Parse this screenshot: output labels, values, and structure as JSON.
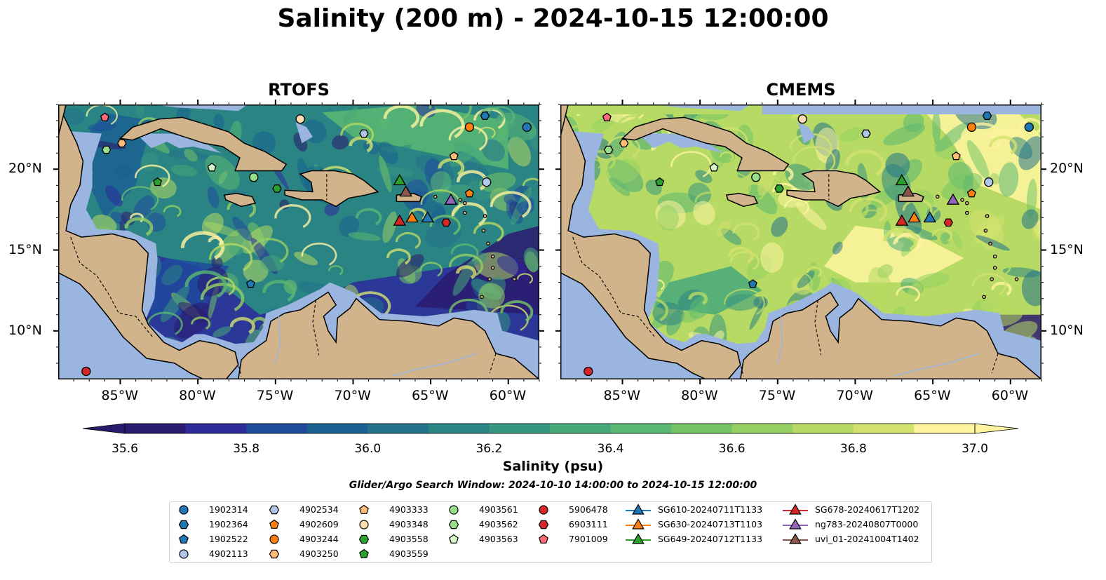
{
  "title": "Salinity (200 m) - 2024-10-15 12:00:00",
  "panels": [
    {
      "title": "RTOFS"
    },
    {
      "title": "CMEMS"
    }
  ],
  "axes": {
    "x_ticks": [
      "85°W",
      "80°W",
      "75°W",
      "70°W",
      "65°W",
      "60°W"
    ],
    "y_ticks": [
      "20°N",
      "15°N",
      "10°N"
    ],
    "lon_range": [
      -89,
      -58
    ],
    "lat_range": [
      7,
      24
    ]
  },
  "colorbar": {
    "label": "Salinity (psu)",
    "ticks": [
      "35.6",
      "35.8",
      "36.0",
      "36.2",
      "36.4",
      "36.6",
      "36.8",
      "37.0"
    ],
    "range": [
      35.6,
      37.0
    ],
    "colors": [
      "#2a1a6e",
      "#2d2a9a",
      "#1f4a9c",
      "#1a6090",
      "#23738a",
      "#2b8484",
      "#37967f",
      "#47a87a",
      "#5bb872",
      "#74c466",
      "#96cf62",
      "#b6da63",
      "#d3e26e",
      "#fff4a0"
    ]
  },
  "search_window": "Glider/Argo Search Window: 2024-10-10 14:00:00 to 2024-10-15 12:00:00",
  "legend": {
    "columns": [
      [
        {
          "label": "1902314",
          "shape": "circle",
          "color": "#1f77b4"
        },
        {
          "label": "1902364",
          "shape": "hexagon",
          "color": "#1f77b4"
        },
        {
          "label": "1902522",
          "shape": "pentagon",
          "color": "#1f77b4"
        },
        {
          "label": "4902113",
          "shape": "circle",
          "color": "#aec7e8"
        }
      ],
      [
        {
          "label": "4902534",
          "shape": "hexagon",
          "color": "#aec7e8"
        },
        {
          "label": "4902609",
          "shape": "pentagon",
          "color": "#ff7f0e"
        },
        {
          "label": "4903244",
          "shape": "circle",
          "color": "#ff7f0e"
        },
        {
          "label": "4903250",
          "shape": "hexagon",
          "color": "#ffbb78"
        }
      ],
      [
        {
          "label": "4903333",
          "shape": "pentagon",
          "color": "#ffbb78"
        },
        {
          "label": "4903348",
          "shape": "circle",
          "color": "#ffddb0"
        },
        {
          "label": "4903558",
          "shape": "hexagon",
          "color": "#2ca02c"
        },
        {
          "label": "4903559",
          "shape": "pentagon",
          "color": "#2ca02c"
        }
      ],
      [
        {
          "label": "4903561",
          "shape": "circle",
          "color": "#98df8a"
        },
        {
          "label": "4903562",
          "shape": "hexagon",
          "color": "#98df8a"
        },
        {
          "label": "4903563",
          "shape": "pentagon",
          "color": "#d6f5c8"
        }
      ],
      [
        {
          "label": "5906478",
          "shape": "circle",
          "color": "#d62728"
        },
        {
          "label": "6903111",
          "shape": "hexagon",
          "color": "#d62728"
        },
        {
          "label": "7901009",
          "shape": "pentagon",
          "color": "#ff6b78"
        }
      ],
      [
        {
          "label": "SG610-20240711T1133",
          "shape": "triangle-line",
          "color": "#1f77b4"
        },
        {
          "label": "SG630-20240713T1103",
          "shape": "triangle-line",
          "color": "#ff7f0e"
        },
        {
          "label": "SG649-20240712T1133",
          "shape": "triangle-line",
          "color": "#2ca02c"
        }
      ],
      [
        {
          "label": "SG678-20240617T1202",
          "shape": "triangle-line",
          "color": "#d62728"
        },
        {
          "label": "ng783-20240807T0000",
          "shape": "triangle-line",
          "color": "#9467bd"
        },
        {
          "label": "uvi_01-20241004T1402",
          "shape": "triangle-line",
          "color": "#8c564b"
        }
      ]
    ]
  },
  "markers": [
    {
      "lon": -58.8,
      "lat": 22.6,
      "shape": "circle",
      "color": "#1f77b4"
    },
    {
      "lon": -61.5,
      "lat": 23.3,
      "shape": "hexagon",
      "color": "#1f77b4"
    },
    {
      "lon": -76.6,
      "lat": 12.9,
      "shape": "pentagon",
      "color": "#1f77b4"
    },
    {
      "lon": -61.4,
      "lat": 19.2,
      "shape": "circle",
      "color": "#aec7e8"
    },
    {
      "lon": -69.3,
      "lat": 22.2,
      "shape": "hexagon",
      "color": "#aec7e8"
    },
    {
      "lon": -62.5,
      "lat": 18.5,
      "shape": "pentagon",
      "color": "#ff7f0e"
    },
    {
      "lon": -62.5,
      "lat": 22.6,
      "shape": "circle",
      "color": "#ff7f0e"
    },
    {
      "lon": -84.9,
      "lat": 21.6,
      "shape": "hexagon",
      "color": "#ffbb78"
    },
    {
      "lon": -63.5,
      "lat": 20.8,
      "shape": "pentagon",
      "color": "#ffbb78"
    },
    {
      "lon": -73.4,
      "lat": 23.1,
      "shape": "circle",
      "color": "#ffddb0"
    },
    {
      "lon": -74.9,
      "lat": 18.8,
      "shape": "hexagon",
      "color": "#2ca02c"
    },
    {
      "lon": -82.6,
      "lat": 19.2,
      "shape": "pentagon",
      "color": "#2ca02c"
    },
    {
      "lon": -76.4,
      "lat": 19.5,
      "shape": "circle",
      "color": "#98df8a"
    },
    {
      "lon": -85.9,
      "lat": 21.2,
      "shape": "hexagon",
      "color": "#98df8a"
    },
    {
      "lon": -79.1,
      "lat": 20.1,
      "shape": "pentagon",
      "color": "#d6f5c8"
    },
    {
      "lon": -87.2,
      "lat": 7.5,
      "shape": "circle",
      "color": "#d62728"
    },
    {
      "lon": -64.0,
      "lat": 16.7,
      "shape": "hexagon",
      "color": "#d62728"
    },
    {
      "lon": -86.0,
      "lat": 23.2,
      "shape": "pentagon",
      "color": "#ff6b78"
    },
    {
      "lon": -65.2,
      "lat": 17.0,
      "shape": "triangle",
      "color": "#1f77b4"
    },
    {
      "lon": -66.2,
      "lat": 17.0,
      "shape": "triangle",
      "color": "#ff7f0e"
    },
    {
      "lon": -67.0,
      "lat": 19.3,
      "shape": "triangle",
      "color": "#2ca02c"
    },
    {
      "lon": -67.0,
      "lat": 16.8,
      "shape": "triangle",
      "color": "#d62728"
    },
    {
      "lon": -63.7,
      "lat": 18.1,
      "shape": "triangle",
      "color": "#9467bd"
    },
    {
      "lon": -66.6,
      "lat": 18.6,
      "shape": "triangle",
      "color": "#8c564b"
    }
  ]
}
